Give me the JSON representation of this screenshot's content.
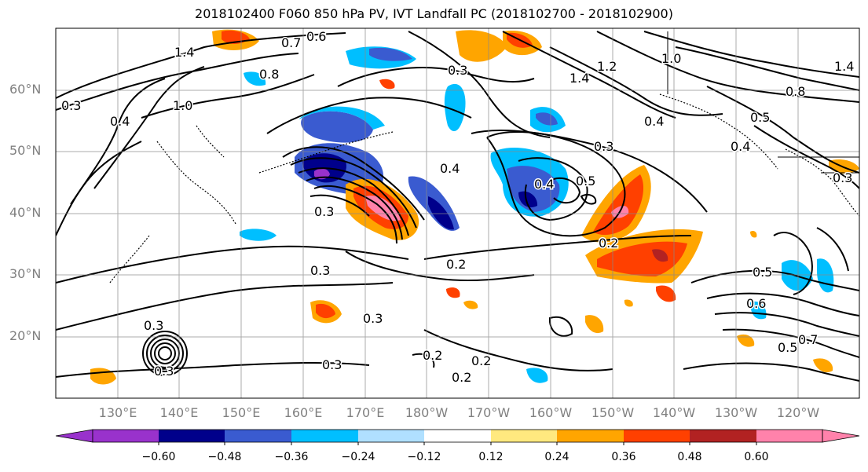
{
  "title": "2018102400 F060 850 hPa PV, IVT Landfall PC (2018102700 - 2018102900)",
  "lat_labels": [
    "60°N",
    "50°N",
    "40°N",
    "30°N",
    "20°N"
  ],
  "lon_labels": [
    "130°E",
    "140°E",
    "150°E",
    "160°E",
    "170°E",
    "180°W",
    "170°W",
    "160°W",
    "150°W",
    "140°W",
    "130°W",
    "120°W"
  ],
  "colorbar": {
    "ticks": [
      "−0.60",
      "−0.48",
      "−0.36",
      "−0.24",
      "−0.12",
      "0.12",
      "0.24",
      "0.36",
      "0.48",
      "0.60"
    ],
    "colors": [
      "#9932CC",
      "#00008B",
      "#3A5BD0",
      "#00BFFF",
      "#B0E0FF",
      "#FFFFFF",
      "#FFE97F",
      "#FFA500",
      "#FF4000",
      "#B22222",
      "#FF82AB"
    ]
  },
  "contour_labels": [
    "0.6",
    "1.4",
    "0.3",
    "0.4",
    "0.8",
    "1.0",
    "0.7",
    "0.4",
    "0.3",
    "0.3",
    "0.4",
    "1.4",
    "1.2",
    "1.0",
    "0.8",
    "1.4",
    "0.5",
    "0.3",
    "0.5",
    "0.4",
    "0.3",
    "0.2",
    "0.2",
    "0.3",
    "0.3",
    "0.2",
    "0.2",
    "0.2",
    "0.3",
    "0.3",
    "0.5",
    "0.6",
    "0.5",
    "0.7",
    "0.4",
    "0.3"
  ]
}
